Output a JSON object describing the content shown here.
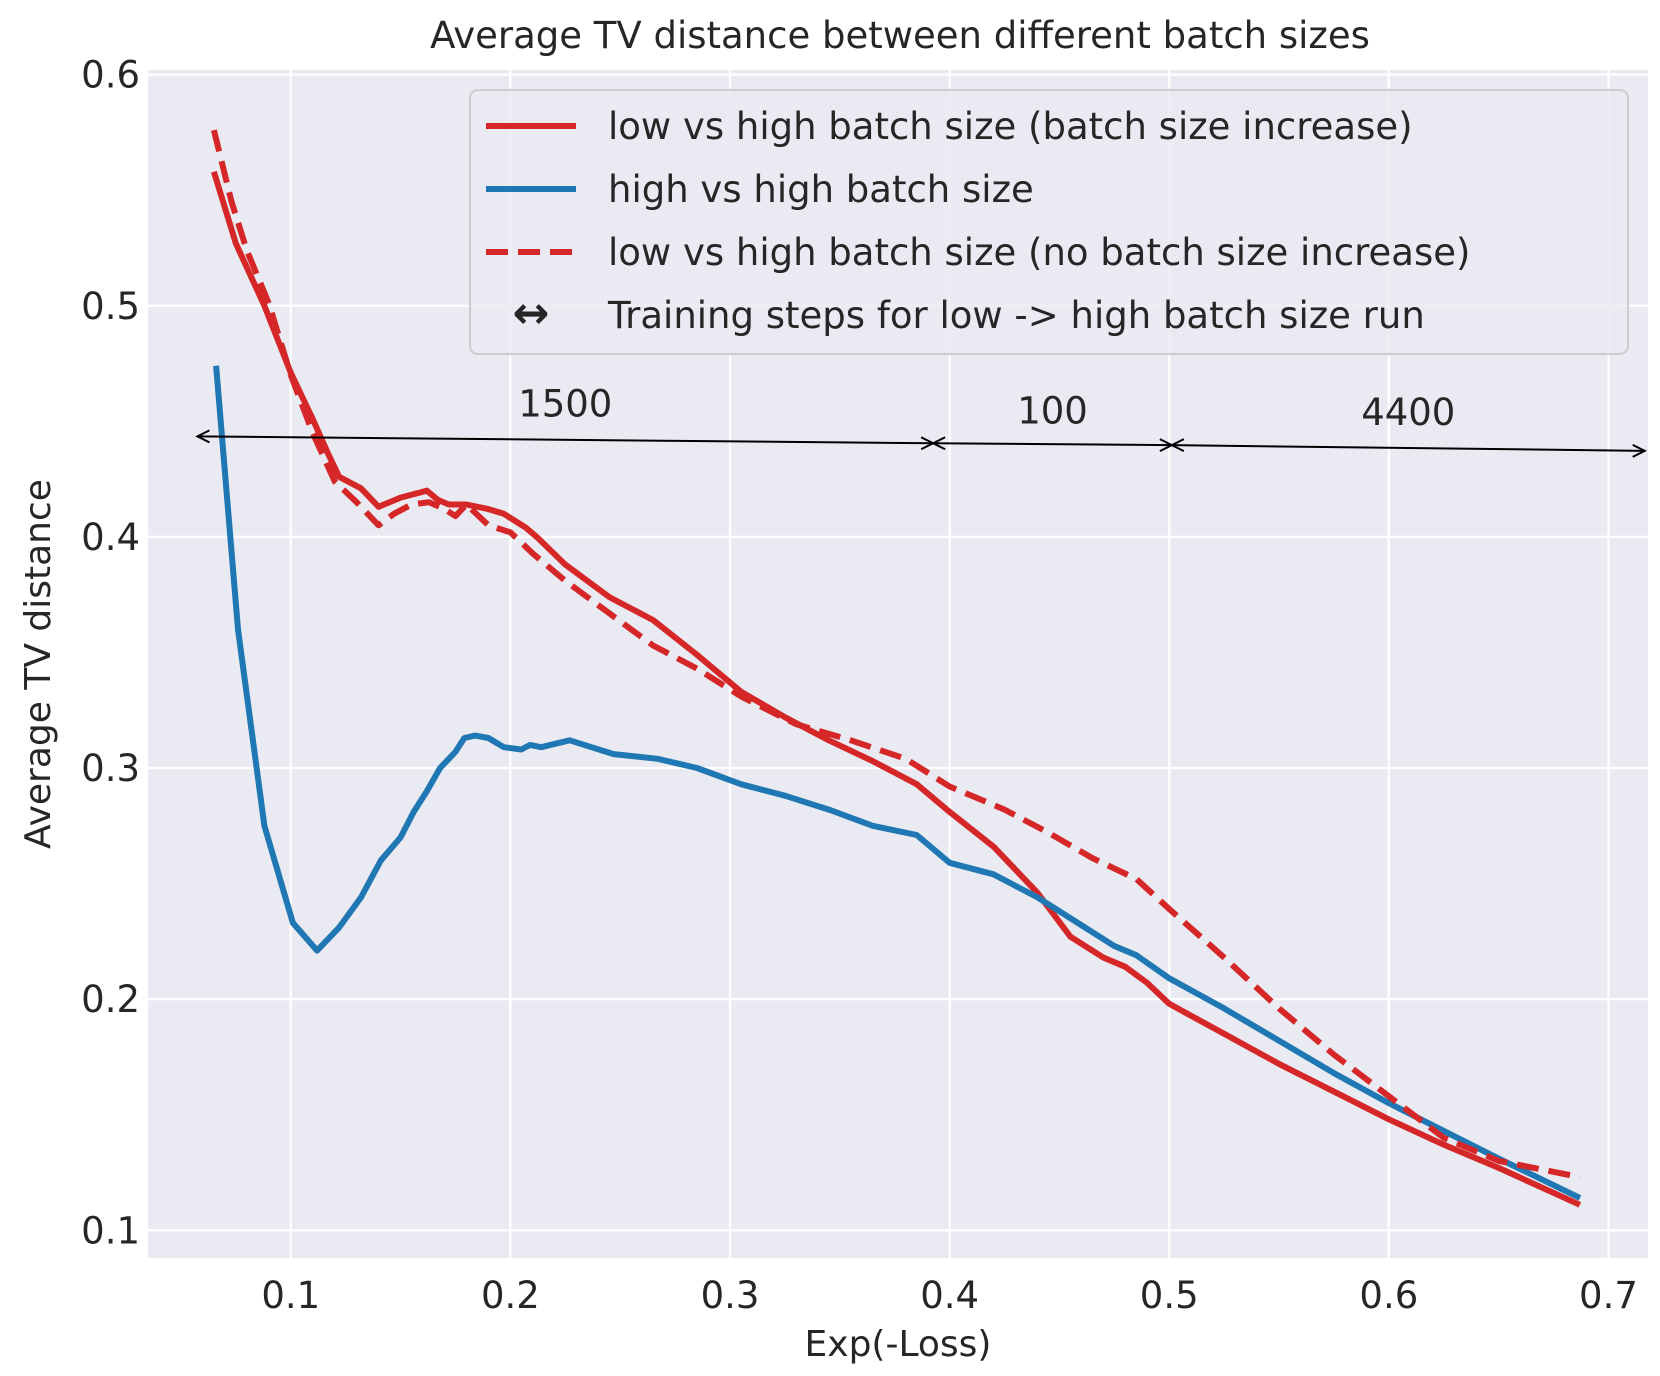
{
  "chart_data": {
    "type": "line",
    "title": "Average TV distance between different batch sizes",
    "xlabel": "Exp(-Loss)",
    "ylabel": "Average TV distance",
    "xlim": [
      0.035,
      0.718
    ],
    "ylim": [
      0.088,
      0.602
    ],
    "x_ticks": [
      0.1,
      0.2,
      0.3,
      0.4,
      0.5,
      0.6,
      0.7
    ],
    "x_tick_labels": [
      "0.1",
      "0.2",
      "0.3",
      "0.4",
      "0.5",
      "0.6",
      "0.7"
    ],
    "y_ticks": [
      0.1,
      0.2,
      0.3,
      0.4,
      0.5,
      0.6
    ],
    "y_tick_labels": [
      "0.1",
      "0.2",
      "0.3",
      "0.4",
      "0.5",
      "0.6"
    ],
    "grid": true,
    "background": "#eaeaf2",
    "legend_position": "top-right",
    "series": [
      {
        "name": "low vs high batch size (batch size increase)",
        "color": "#d62728",
        "style": "solid",
        "x": [
          0.065,
          0.075,
          0.088,
          0.1,
          0.11,
          0.117,
          0.122,
          0.132,
          0.14,
          0.15,
          0.162,
          0.167,
          0.172,
          0.18,
          0.19,
          0.197,
          0.207,
          0.212,
          0.225,
          0.245,
          0.265,
          0.285,
          0.305,
          0.325,
          0.345,
          0.365,
          0.385,
          0.4,
          0.42,
          0.44,
          0.455,
          0.47,
          0.48,
          0.49,
          0.5,
          0.525,
          0.55,
          0.575,
          0.6,
          0.625,
          0.65,
          0.687
        ],
        "y": [
          0.558,
          0.527,
          0.5,
          0.471,
          0.451,
          0.436,
          0.426,
          0.421,
          0.413,
          0.417,
          0.42,
          0.416,
          0.414,
          0.414,
          0.412,
          0.41,
          0.404,
          0.4,
          0.388,
          0.374,
          0.364,
          0.349,
          0.333,
          0.322,
          0.312,
          0.303,
          0.293,
          0.281,
          0.266,
          0.246,
          0.227,
          0.218,
          0.214,
          0.207,
          0.198,
          0.185,
          0.172,
          0.16,
          0.148,
          0.137,
          0.127,
          0.111
        ]
      },
      {
        "name": "high vs high batch size",
        "color": "#1f77b4",
        "style": "solid",
        "x": [
          0.066,
          0.076,
          0.088,
          0.101,
          0.112,
          0.122,
          0.132,
          0.141,
          0.15,
          0.156,
          0.162,
          0.168,
          0.175,
          0.179,
          0.184,
          0.19,
          0.197,
          0.205,
          0.209,
          0.214,
          0.227,
          0.247,
          0.267,
          0.285,
          0.305,
          0.325,
          0.345,
          0.365,
          0.385,
          0.4,
          0.42,
          0.44,
          0.46,
          0.475,
          0.485,
          0.5,
          0.525,
          0.55,
          0.575,
          0.6,
          0.625,
          0.65,
          0.687
        ],
        "y": [
          0.474,
          0.36,
          0.275,
          0.233,
          0.221,
          0.231,
          0.244,
          0.26,
          0.27,
          0.281,
          0.29,
          0.3,
          0.307,
          0.313,
          0.314,
          0.313,
          0.309,
          0.308,
          0.31,
          0.309,
          0.312,
          0.306,
          0.304,
          0.3,
          0.293,
          0.288,
          0.282,
          0.275,
          0.271,
          0.259,
          0.254,
          0.244,
          0.232,
          0.223,
          0.219,
          0.209,
          0.196,
          0.182,
          0.168,
          0.155,
          0.143,
          0.131,
          0.114
        ]
      },
      {
        "name": "low vs high batch size (no batch size increase)",
        "color": "#d62728",
        "style": "dashed",
        "x": [
          0.065,
          0.073,
          0.08,
          0.09,
          0.1,
          0.11,
          0.12,
          0.13,
          0.14,
          0.147,
          0.155,
          0.163,
          0.17,
          0.175,
          0.18,
          0.19,
          0.2,
          0.21,
          0.225,
          0.245,
          0.265,
          0.285,
          0.305,
          0.33,
          0.355,
          0.38,
          0.4,
          0.425,
          0.445,
          0.465,
          0.485,
          0.5,
          0.525,
          0.55,
          0.575,
          0.6,
          0.625,
          0.65,
          0.687
        ],
        "y": [
          0.576,
          0.545,
          0.524,
          0.501,
          0.47,
          0.445,
          0.424,
          0.415,
          0.405,
          0.41,
          0.414,
          0.415,
          0.412,
          0.409,
          0.414,
          0.405,
          0.402,
          0.393,
          0.381,
          0.367,
          0.353,
          0.343,
          0.331,
          0.319,
          0.312,
          0.304,
          0.292,
          0.282,
          0.272,
          0.261,
          0.252,
          0.239,
          0.218,
          0.196,
          0.176,
          0.158,
          0.14,
          0.13,
          0.123
        ]
      }
    ],
    "annotation_legend_label": "Training steps for low -> high batch size run",
    "annotation_arrows": [
      {
        "label": "1500",
        "x_start": 0.0575,
        "x_end": 0.3925,
        "y_start": 0.4435,
        "y_end": 0.4405
      },
      {
        "label": "100",
        "x_start": 0.3925,
        "x_end": 0.5012,
        "y_start": 0.4405,
        "y_end": 0.4397
      },
      {
        "label": "4400",
        "x_start": 0.5012,
        "x_end": 0.7165,
        "y_start": 0.4397,
        "y_end": 0.4372
      }
    ]
  }
}
